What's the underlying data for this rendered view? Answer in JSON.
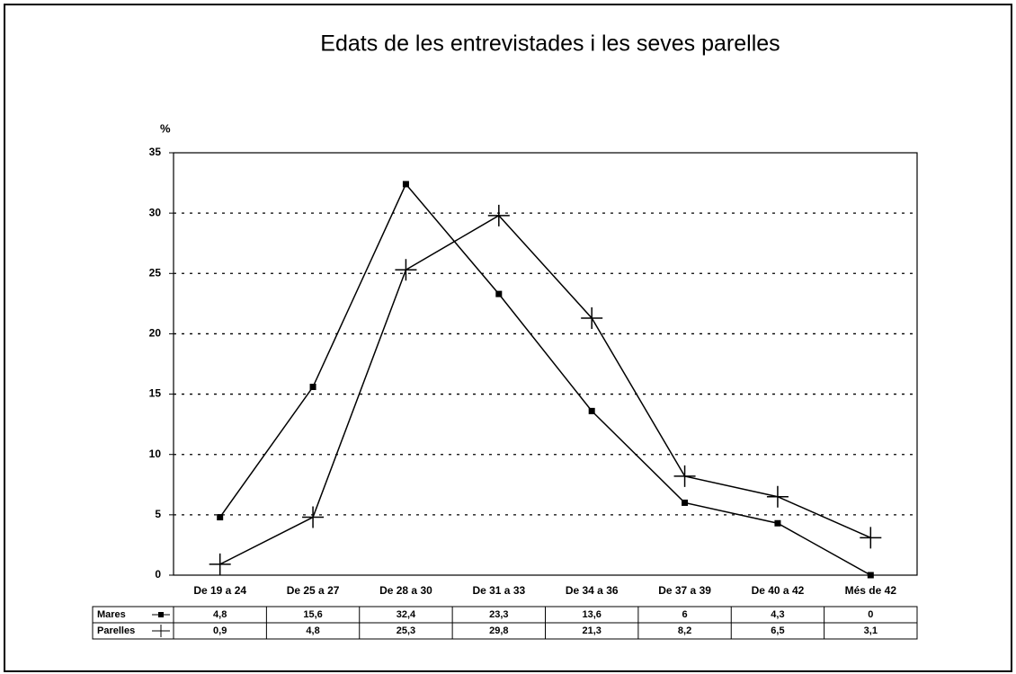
{
  "chart_data": {
    "type": "line",
    "title": "Edats de les entrevistades i les seves parelles",
    "y_label": "%",
    "categories": [
      "De 19 a 24",
      "De 25 a 27",
      "De 28 a 30",
      "De 31 a 33",
      "De 34 a 36",
      "De 37 a 39",
      "De 40 a 42",
      "Més de 42"
    ],
    "series": [
      {
        "name": "Mares",
        "color": "#000000",
        "values": [
          4.8,
          15.6,
          32.4,
          23.3,
          13.6,
          6,
          4.3,
          0
        ],
        "value_labels": [
          "4,8",
          "15,6",
          "32,4",
          "23,3",
          "13,6",
          "6",
          "4,3",
          "0"
        ]
      },
      {
        "name": "Parelles",
        "color": "#000000",
        "values": [
          0.9,
          4.8,
          25.3,
          29.8,
          21.3,
          8.2,
          6.5,
          3.1
        ],
        "value_labels": [
          "0,9",
          "4,8",
          "25,3",
          "29,8",
          "21,3",
          "8,2",
          "6,5",
          "3,1"
        ]
      }
    ],
    "ylim": [
      0,
      35
    ],
    "yticks": [
      0,
      5,
      10,
      15,
      20,
      25,
      30,
      35
    ],
    "grid": true
  }
}
